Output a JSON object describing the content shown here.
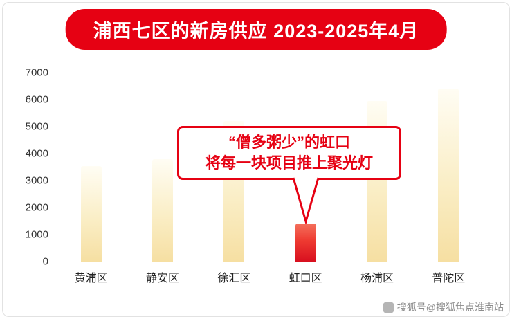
{
  "chart_data": {
    "type": "bar",
    "title": "浦西七区的新房供应 2023-2025年4月",
    "categories": [
      "黄浦区",
      "静安区",
      "徐汇区",
      "虹口区",
      "杨浦区",
      "普陀区"
    ],
    "values": [
      3550,
      3800,
      5200,
      1400,
      5950,
      6400
    ],
    "ylim": [
      0,
      7000
    ],
    "ytick_step": 1000,
    "xlabel": "",
    "ylabel": "",
    "grid": true,
    "legend_position": "none",
    "highlight_index": 3,
    "annotations": [
      "“僧多粥少”的虹口",
      "将每一块项目推上聚光灯"
    ]
  },
  "colors": {
    "accent": "#e60113",
    "bar_top": "#fffdf4",
    "bar_bottom": "#f6dfa2",
    "highlight_top": "#f4705c",
    "highlight_bottom": "#d8101f",
    "axis_text": "#333333",
    "watermark": "#8c8c8c"
  },
  "watermark": {
    "text": "搜狐号@搜狐焦点淮南站"
  }
}
